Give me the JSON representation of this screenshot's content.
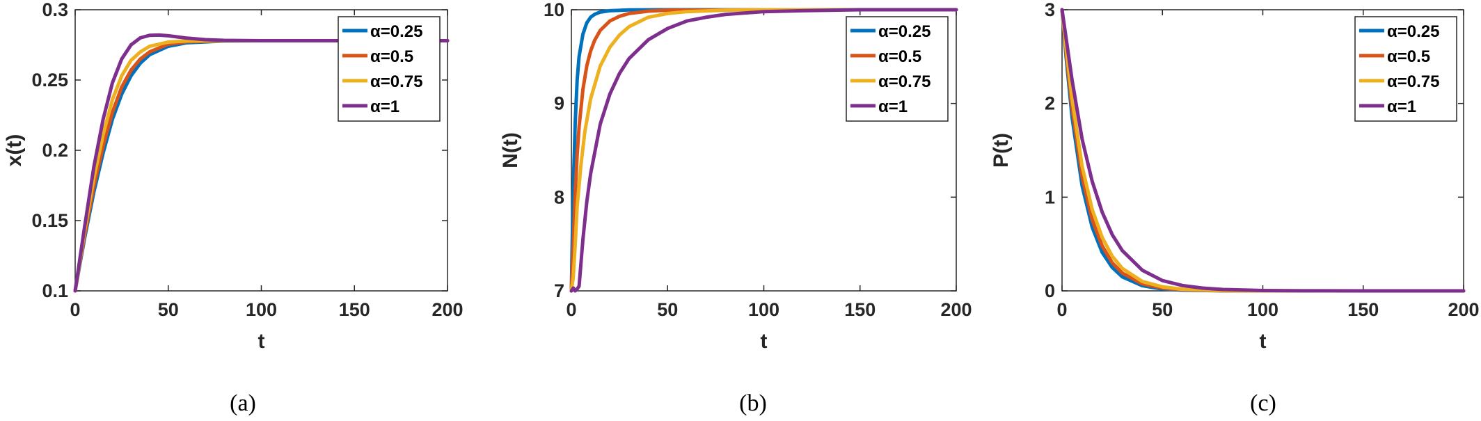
{
  "colors": {
    "a025": "#0072BD",
    "a05": "#D95319",
    "a075": "#EDB120",
    "a1": "#7E2F8E"
  },
  "chart_data": [
    {
      "type": "line",
      "caption": "(a)",
      "xlabel": "t",
      "ylabel": "x(t)",
      "xlim": [
        0,
        200
      ],
      "ylim": [
        0.1,
        0.3
      ],
      "xticks": [
        "0",
        "50",
        "100",
        "150",
        "200"
      ],
      "yticks": [
        "0.1",
        "0.15",
        "0.2",
        "0.25",
        "0.3"
      ],
      "legend_position": "top-right",
      "grid": false,
      "series": [
        {
          "name": "α=0.25",
          "color": "#0072BD",
          "x": [
            0,
            2,
            5,
            10,
            15,
            20,
            25,
            30,
            35,
            40,
            50,
            60,
            80,
            100,
            150,
            200
          ],
          "y": [
            0.1,
            0.115,
            0.137,
            0.17,
            0.198,
            0.222,
            0.24,
            0.253,
            0.262,
            0.268,
            0.274,
            0.2765,
            0.2778,
            0.278,
            0.278,
            0.278
          ]
        },
        {
          "name": "α=0.5",
          "color": "#D95319",
          "x": [
            0,
            2,
            5,
            10,
            15,
            20,
            25,
            30,
            35,
            40,
            50,
            60,
            80,
            100,
            150,
            200
          ],
          "y": [
            0.1,
            0.116,
            0.139,
            0.174,
            0.203,
            0.227,
            0.245,
            0.257,
            0.265,
            0.27,
            0.2755,
            0.2772,
            0.278,
            0.278,
            0.278,
            0.278
          ]
        },
        {
          "name": "α=0.75",
          "color": "#EDB120",
          "x": [
            0,
            2,
            5,
            10,
            15,
            20,
            25,
            30,
            35,
            40,
            50,
            60,
            80,
            100,
            150,
            200
          ],
          "y": [
            0.1,
            0.117,
            0.142,
            0.18,
            0.211,
            0.236,
            0.253,
            0.264,
            0.27,
            0.274,
            0.277,
            0.2778,
            0.278,
            0.278,
            0.278,
            0.278
          ]
        },
        {
          "name": "α=1",
          "color": "#7E2F8E",
          "x": [
            0,
            2,
            5,
            10,
            15,
            20,
            25,
            30,
            35,
            40,
            45,
            50,
            60,
            70,
            80,
            100,
            150,
            200
          ],
          "y": [
            0.1,
            0.118,
            0.145,
            0.188,
            0.222,
            0.248,
            0.265,
            0.275,
            0.28,
            0.2818,
            0.282,
            0.2815,
            0.2798,
            0.2787,
            0.2782,
            0.278,
            0.278,
            0.278
          ]
        }
      ]
    },
    {
      "type": "line",
      "caption": "(b)",
      "xlabel": "t",
      "ylabel": "N(t)",
      "xlim": [
        0,
        200
      ],
      "ylim": [
        7,
        10
      ],
      "xticks": [
        "0",
        "50",
        "100",
        "150",
        "200"
      ],
      "yticks": [
        "7",
        "8",
        "9",
        "10"
      ],
      "legend_position": "top-right",
      "grid": false,
      "series": [
        {
          "name": "α=0.25",
          "color": "#0072BD",
          "x": [
            0,
            0.5,
            1,
            2,
            3,
            4,
            6,
            8,
            10,
            12,
            15,
            20,
            30,
            50,
            100,
            200
          ],
          "y": [
            7,
            7.6,
            8.1,
            8.8,
            9.25,
            9.5,
            9.74,
            9.86,
            9.92,
            9.95,
            9.975,
            9.99,
            9.998,
            10,
            10,
            10
          ]
        },
        {
          "name": "α=0.5",
          "color": "#D95319",
          "x": [
            0,
            1,
            2,
            3,
            4,
            6,
            8,
            10,
            12,
            15,
            20,
            25,
            30,
            40,
            50,
            100,
            200
          ],
          "y": [
            7,
            7.5,
            8.05,
            8.45,
            8.75,
            9.15,
            9.4,
            9.56,
            9.67,
            9.78,
            9.88,
            9.93,
            9.96,
            9.985,
            9.995,
            10,
            10
          ]
        },
        {
          "name": "α=0.75",
          "color": "#EDB120",
          "x": [
            0,
            1,
            2,
            3,
            5,
            7,
            10,
            15,
            20,
            25,
            30,
            40,
            50,
            60,
            80,
            100,
            150,
            200
          ],
          "y": [
            7,
            7.15,
            7.5,
            7.9,
            8.35,
            8.7,
            9.05,
            9.4,
            9.6,
            9.73,
            9.82,
            9.92,
            9.96,
            9.98,
            9.995,
            10,
            10,
            10
          ]
        },
        {
          "name": "α=1",
          "color": "#7E2F8E",
          "x": [
            0,
            1,
            2,
            3,
            4,
            5,
            6,
            8,
            10,
            15,
            20,
            25,
            30,
            40,
            50,
            60,
            70,
            80,
            100,
            120,
            150,
            200
          ],
          "y": [
            7,
            7.03,
            7.0,
            7.02,
            7.05,
            7.3,
            7.55,
            7.95,
            8.25,
            8.78,
            9.1,
            9.32,
            9.48,
            9.68,
            9.8,
            9.88,
            9.92,
            9.95,
            9.98,
            9.99,
            10,
            10
          ]
        }
      ]
    },
    {
      "type": "line",
      "caption": "(c)",
      "xlabel": "t",
      "ylabel": "P(t)",
      "xlim": [
        0,
        200
      ],
      "ylim": [
        0,
        3
      ],
      "xticks": [
        "0",
        "50",
        "100",
        "150",
        "200"
      ],
      "yticks": [
        "0",
        "1",
        "2",
        "3"
      ],
      "legend_position": "top-right",
      "grid": false,
      "series": [
        {
          "name": "α=0.25",
          "color": "#0072BD",
          "x": [
            0,
            2,
            5,
            10,
            15,
            20,
            25,
            30,
            40,
            50,
            60,
            80,
            100,
            150,
            200
          ],
          "y": [
            3,
            2.5,
            1.85,
            1.12,
            0.68,
            0.41,
            0.25,
            0.15,
            0.055,
            0.02,
            0.007,
            0.001,
            0,
            0,
            0
          ]
        },
        {
          "name": "α=0.5",
          "color": "#D95319",
          "x": [
            0,
            2,
            5,
            10,
            15,
            20,
            25,
            30,
            40,
            50,
            60,
            80,
            100,
            150,
            200
          ],
          "y": [
            3,
            2.55,
            1.95,
            1.22,
            0.76,
            0.48,
            0.3,
            0.19,
            0.075,
            0.03,
            0.012,
            0.002,
            0,
            0,
            0
          ]
        },
        {
          "name": "α=0.75",
          "color": "#EDB120",
          "x": [
            0,
            2,
            5,
            10,
            15,
            20,
            25,
            30,
            40,
            50,
            60,
            80,
            100,
            150,
            200
          ],
          "y": [
            3,
            2.6,
            2.05,
            1.33,
            0.87,
            0.57,
            0.37,
            0.24,
            0.1,
            0.043,
            0.018,
            0.003,
            0.001,
            0,
            0
          ]
        },
        {
          "name": "α=1",
          "color": "#7E2F8E",
          "x": [
            0,
            2,
            5,
            10,
            15,
            20,
            25,
            30,
            40,
            50,
            60,
            70,
            80,
            100,
            120,
            150,
            200
          ],
          "y": [
            3,
            2.7,
            2.25,
            1.62,
            1.17,
            0.84,
            0.6,
            0.43,
            0.22,
            0.11,
            0.057,
            0.03,
            0.015,
            0.004,
            0.001,
            0,
            0
          ]
        }
      ]
    }
  ]
}
